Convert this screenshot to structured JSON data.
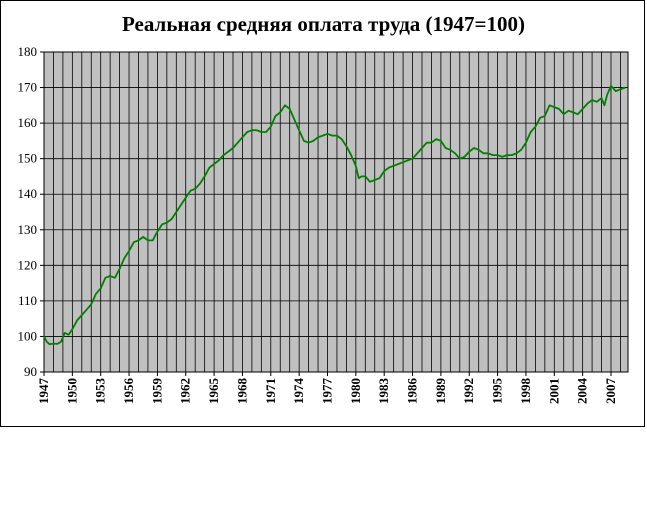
{
  "chart_data": {
    "type": "line",
    "title": "Реальная средняя оплата труда (1947=100)",
    "xlabel": "",
    "ylabel": "",
    "xlim": [
      1947,
      2008.8
    ],
    "ylim": [
      90,
      180
    ],
    "y_ticks": [
      90,
      100,
      110,
      120,
      130,
      140,
      150,
      160,
      170,
      180
    ],
    "x_ticks": [
      1947,
      1950,
      1953,
      1956,
      1959,
      1962,
      1965,
      1968,
      1971,
      1974,
      1977,
      1980,
      1983,
      1986,
      1989,
      1992,
      1995,
      1998,
      2001,
      2004,
      2007
    ],
    "grid": true,
    "legend": "none",
    "colors": {
      "plot_background": "#c0c0c0",
      "line": "#008000",
      "grid": "#000000"
    },
    "series": [
      {
        "x": [
          1947.0,
          1947.3,
          1947.6,
          1948.0,
          1948.4,
          1948.8,
          1949.2,
          1949.6,
          1950.0,
          1950.5,
          1951.0,
          1951.5,
          1952.0,
          1952.5,
          1953.0,
          1953.5,
          1954.0,
          1954.5,
          1955.0,
          1955.5,
          1956.0,
          1956.5,
          1957.0,
          1957.5,
          1958.0,
          1958.5,
          1959.0,
          1959.5,
          1960.0,
          1960.5,
          1961.0,
          1961.5,
          1962.0,
          1962.5,
          1963.0,
          1963.5,
          1964.0,
          1964.5,
          1965.0,
          1965.5,
          1966.0,
          1966.5,
          1967.0,
          1967.5,
          1968.0,
          1968.5,
          1969.0,
          1969.5,
          1970.0,
          1970.5,
          1971.0,
          1971.5,
          1972.0,
          1972.5,
          1973.0,
          1973.5,
          1974.0,
          1974.5,
          1975.0,
          1975.5,
          1976.0,
          1976.5,
          1977.0,
          1977.5,
          1978.0,
          1978.5,
          1979.0,
          1979.5,
          1980.0,
          1980.3,
          1980.6,
          1981.0,
          1981.5,
          1982.0,
          1982.5,
          1983.0,
          1983.5,
          1984.0,
          1984.5,
          1985.0,
          1985.5,
          1986.0,
          1986.5,
          1987.0,
          1987.5,
          1988.0,
          1988.5,
          1989.0,
          1989.5,
          1990.0,
          1990.5,
          1991.0,
          1991.5,
          1992.0,
          1992.5,
          1993.0,
          1993.5,
          1994.0,
          1994.5,
          1995.0,
          1995.5,
          1996.0,
          1996.5,
          1997.0,
          1997.5,
          1998.0,
          1998.5,
          1999.0,
          1999.5,
          2000.0,
          2000.5,
          2001.0,
          2001.5,
          2002.0,
          2002.5,
          2003.0,
          2003.5,
          2004.0,
          2004.5,
          2005.0,
          2005.5,
          2006.0,
          2006.3,
          2006.6,
          2007.0,
          2007.5,
          2008.0,
          2008.5
        ],
        "values": [
          100.0,
          98.5,
          97.8,
          98.0,
          97.9,
          98.5,
          101.0,
          100.5,
          102.0,
          104.5,
          106.0,
          107.5,
          109.0,
          112.0,
          113.5,
          116.5,
          117.0,
          116.5,
          119.0,
          122.0,
          124.0,
          126.5,
          127.0,
          128.0,
          127.0,
          127.0,
          129.5,
          131.5,
          132.0,
          133.0,
          135.0,
          137.0,
          139.0,
          141.0,
          141.5,
          143.0,
          145.0,
          147.5,
          148.5,
          149.5,
          151.0,
          152.0,
          153.0,
          154.5,
          156.0,
          157.5,
          158.0,
          158.0,
          157.5,
          157.5,
          159.0,
          162.0,
          163.0,
          165.0,
          164.0,
          161.0,
          158.0,
          155.0,
          154.5,
          155.0,
          156.0,
          156.5,
          157.0,
          156.5,
          156.5,
          155.5,
          153.5,
          151.0,
          148.0,
          144.5,
          145.0,
          145.0,
          143.5,
          144.0,
          144.5,
          146.5,
          147.5,
          148.0,
          148.5,
          149.0,
          149.5,
          150.0,
          151.5,
          153.0,
          154.5,
          154.5,
          155.5,
          155.0,
          153.0,
          152.5,
          151.5,
          150.0,
          150.5,
          152.0,
          153.0,
          152.5,
          151.5,
          151.5,
          151.0,
          151.0,
          150.5,
          151.0,
          151.0,
          151.5,
          152.5,
          154.5,
          157.5,
          159.0,
          161.5,
          162.0,
          165.0,
          164.5,
          164.0,
          162.5,
          163.5,
          163.0,
          162.5,
          164.0,
          165.5,
          166.5,
          166.0,
          167.0,
          165.0,
          168.0,
          170.5,
          169.0,
          169.5,
          170.0
        ]
      }
    ]
  }
}
